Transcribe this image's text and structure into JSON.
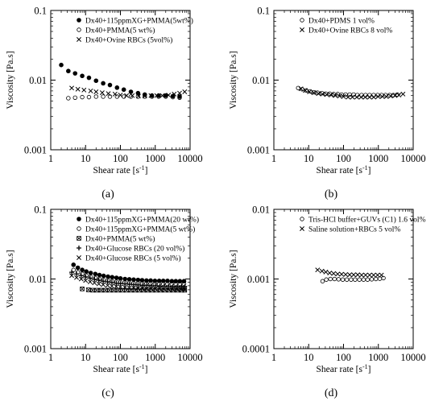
{
  "chart_data": [
    {
      "type": "scatter",
      "panel_label": "(a)",
      "xlabel": "Shear rate  [s",
      "xlabel_sup": "-1",
      "xlabel_end": "]",
      "ylabel": "Viscosity [Pa.s]",
      "xscale": "log",
      "yscale": "log",
      "xlim": [
        1,
        10000
      ],
      "ylim": [
        0.001,
        0.1
      ],
      "xticks": [
        1,
        10,
        100,
        1000,
        10000
      ],
      "xtick_labels": [
        "1",
        "10",
        "100",
        "1000",
        "10000"
      ],
      "yticks": [
        0.001,
        0.01,
        0.1
      ],
      "ytick_labels": [
        "0.001",
        "0.01",
        "0.1"
      ],
      "legend_position": "top-right",
      "series": [
        {
          "name": "Dx40+115ppmXG+PMMA(5wt%)",
          "marker": "filled-circle",
          "x": [
            2,
            3.2,
            5,
            8,
            12.5,
            20,
            32,
            50,
            80,
            125,
            200,
            320,
            500,
            800,
            1250,
            2000,
            3200,
            5000
          ],
          "y": [
            0.0165,
            0.0135,
            0.0125,
            0.0115,
            0.0108,
            0.0098,
            0.009,
            0.0085,
            0.0078,
            0.0073,
            0.0068,
            0.0065,
            0.0062,
            0.006,
            0.006,
            0.006,
            0.0059,
            0.0058
          ]
        },
        {
          "name": "Dx40+PMMA(5 wt%)",
          "marker": "open-circle",
          "x": [
            3.2,
            5,
            8,
            12.5,
            20,
            32,
            50,
            80,
            125,
            200,
            320,
            500,
            800,
            1250,
            2000,
            3200,
            5000
          ],
          "y": [
            0.0055,
            0.0056,
            0.0057,
            0.0057,
            0.0058,
            0.0058,
            0.0058,
            0.0058,
            0.0058,
            0.0058,
            0.0058,
            0.0058,
            0.0058,
            0.0058,
            0.0058,
            0.0057,
            0.0056
          ]
        },
        {
          "name": "Dx40+Ovine RBCs (5vol%)",
          "marker": "cross",
          "x": [
            4,
            6,
            9,
            14,
            20,
            30,
            45,
            70,
            100,
            150,
            220,
            330,
            500,
            750,
            1100,
            1600,
            2400,
            3500,
            5000,
            7000
          ],
          "y": [
            0.0077,
            0.0074,
            0.0072,
            0.007,
            0.0068,
            0.0066,
            0.0064,
            0.0063,
            0.0061,
            0.006,
            0.006,
            0.0059,
            0.0059,
            0.006,
            0.006,
            0.006,
            0.0061,
            0.0063,
            0.0065,
            0.0068
          ]
        }
      ]
    },
    {
      "type": "scatter",
      "panel_label": "(b)",
      "xlabel": "Shear rate  [s",
      "xlabel_sup": "-1",
      "xlabel_end": "]",
      "ylabel": "Viscosity [Pa.s]",
      "xscale": "log",
      "yscale": "log",
      "xlim": [
        1,
        10000
      ],
      "ylim": [
        0.001,
        0.1
      ],
      "xticks": [
        1,
        10,
        100,
        1000,
        10000
      ],
      "xtick_labels": [
        "1",
        "10",
        "100",
        "1000",
        "10000"
      ],
      "yticks": [
        0.001,
        0.01,
        0.1
      ],
      "ytick_labels": [
        "0.001",
        "0.01",
        "0.1"
      ],
      "legend_position": "top-right",
      "series": [
        {
          "name": "Dx40+PDMS 1 vol%",
          "marker": "open-circle",
          "x": [
            5,
            6.5,
            8.5,
            11,
            14,
            18,
            24,
            31,
            40,
            52,
            68,
            88,
            115,
            150,
            195,
            250,
            330,
            430,
            560,
            730,
            950,
            1230,
            1600,
            2100,
            2700,
            3500
          ],
          "y": [
            0.0077,
            0.0074,
            0.0071,
            0.0069,
            0.0067,
            0.0066,
            0.0065,
            0.0064,
            0.0064,
            0.0063,
            0.0063,
            0.0062,
            0.0062,
            0.0062,
            0.0062,
            0.0061,
            0.0061,
            0.0061,
            0.0061,
            0.0061,
            0.0061,
            0.0061,
            0.0061,
            0.0061,
            0.0061,
            0.0062
          ]
        },
        {
          "name": "Dx40+Ovine RBCs 8 vol%",
          "marker": "cross",
          "x": [
            6,
            8,
            10.5,
            14,
            19,
            25,
            33,
            44,
            58,
            77,
            100,
            135,
            180,
            240,
            320,
            420,
            560,
            740,
            980,
            1300,
            1700,
            2250,
            3000,
            3900,
            5100
          ],
          "y": [
            0.0075,
            0.0071,
            0.0068,
            0.0066,
            0.0064,
            0.0063,
            0.0062,
            0.0061,
            0.006,
            0.0059,
            0.0058,
            0.0057,
            0.0057,
            0.0057,
            0.0057,
            0.0057,
            0.0057,
            0.0057,
            0.0058,
            0.0058,
            0.0058,
            0.0059,
            0.006,
            0.0061,
            0.0063
          ]
        }
      ]
    },
    {
      "type": "scatter",
      "panel_label": "(c)",
      "xlabel": "Shear rate  [s",
      "xlabel_sup": "-1",
      "xlabel_end": "]",
      "ylabel": "Viscosity [Pa.s]",
      "xscale": "log",
      "yscale": "log",
      "xlim": [
        1,
        10000
      ],
      "ylim": [
        0.001,
        0.1
      ],
      "xticks": [
        1,
        10,
        100,
        1000,
        10000
      ],
      "xtick_labels": [
        "1",
        "10",
        "100",
        "1000",
        "10000"
      ],
      "yticks": [
        0.001,
        0.01,
        0.1
      ],
      "ytick_labels": [
        "0.001",
        "0.01",
        "0.1"
      ],
      "legend_position": "top-right",
      "series": [
        {
          "name": "Dx40+115ppmXG+PMMA(20 wt%)",
          "marker": "filled-circle",
          "x": [
            4.5,
            6,
            8,
            10.5,
            14,
            19,
            25,
            33,
            44,
            58,
            77,
            100,
            135,
            180,
            240,
            320,
            420,
            560,
            740,
            980,
            1300,
            1700,
            2250,
            3000,
            3900,
            5100,
            6700
          ],
          "y": [
            0.016,
            0.0145,
            0.0135,
            0.0128,
            0.0122,
            0.0118,
            0.0114,
            0.0111,
            0.0108,
            0.0106,
            0.0104,
            0.0102,
            0.01,
            0.0099,
            0.0098,
            0.0097,
            0.0096,
            0.0095,
            0.0095,
            0.0094,
            0.0094,
            0.0094,
            0.0094,
            0.0093,
            0.0093,
            0.0093,
            0.0093
          ]
        },
        {
          "name": "Dx40+115ppmXG+PMMA(5 wt%)",
          "marker": "open-circle",
          "x": [
            4.5,
            6,
            8,
            10.5,
            14,
            19,
            25,
            33,
            44,
            58,
            77,
            100,
            135,
            180,
            240,
            320,
            420,
            560,
            740,
            980,
            1300,
            1700,
            2250,
            3000,
            3900,
            5100,
            6700
          ],
          "y": [
            0.0135,
            0.0125,
            0.0118,
            0.0112,
            0.0107,
            0.0103,
            0.01,
            0.0097,
            0.0095,
            0.0093,
            0.0091,
            0.009,
            0.0089,
            0.0088,
            0.0087,
            0.0087,
            0.0086,
            0.0086,
            0.0086,
            0.0085,
            0.0085,
            0.0085,
            0.0085,
            0.0085,
            0.0085,
            0.0085,
            0.0085
          ]
        },
        {
          "name": "Dx40+PMMA(5 wt%)",
          "marker": "boxed-cross",
          "x": [
            8,
            12,
            16,
            21,
            28,
            37,
            49,
            65,
            86,
            115,
            150,
            200,
            265,
            350,
            465,
            615,
            815,
            1080,
            1430,
            1900,
            2500,
            3300,
            4400,
            5800,
            7000
          ],
          "y": [
            0.0072,
            0.007,
            0.0069,
            0.0069,
            0.0069,
            0.0069,
            0.0069,
            0.0069,
            0.0069,
            0.0069,
            0.0069,
            0.0069,
            0.0069,
            0.0069,
            0.0069,
            0.0069,
            0.0069,
            0.0069,
            0.0069,
            0.0069,
            0.0069,
            0.0069,
            0.0069,
            0.0069,
            0.0069
          ]
        },
        {
          "name": "Dx40+Glucose RBCs (20 vol%)",
          "marker": "plus",
          "x": [
            4,
            5.5,
            7.5,
            10,
            13.5,
            18,
            24,
            32,
            43,
            57,
            76,
            100,
            135,
            180,
            240,
            320,
            430,
            570,
            760,
            1010,
            1350,
            1800,
            2400,
            3200,
            4300,
            5700,
            7000
          ],
          "y": [
            0.0125,
            0.0118,
            0.0112,
            0.0107,
            0.0103,
            0.0099,
            0.0096,
            0.0093,
            0.0091,
            0.0089,
            0.0087,
            0.0086,
            0.0085,
            0.0084,
            0.0083,
            0.0082,
            0.0081,
            0.0081,
            0.008,
            0.008,
            0.0079,
            0.0079,
            0.0079,
            0.0078,
            0.0078,
            0.0078,
            0.0078
          ]
        },
        {
          "name": "Dx40+Glucose RBCs (5 vol%)",
          "marker": "cross",
          "x": [
            4,
            5.5,
            7.5,
            10,
            13.5,
            18,
            24,
            32,
            43,
            57,
            76,
            100,
            135,
            180,
            240,
            320,
            430,
            570,
            760,
            1010,
            1350,
            1800,
            2400,
            3200,
            4300,
            5700,
            7000
          ],
          "y": [
            0.0112,
            0.0105,
            0.01,
            0.0095,
            0.0091,
            0.0088,
            0.0085,
            0.0083,
            0.0081,
            0.0079,
            0.0078,
            0.0077,
            0.0076,
            0.0075,
            0.0075,
            0.0074,
            0.0074,
            0.0073,
            0.0073,
            0.0073,
            0.0073,
            0.0072,
            0.0072,
            0.0072,
            0.0072,
            0.0072,
            0.0072
          ]
        }
      ]
    },
    {
      "type": "scatter",
      "panel_label": "(d)",
      "xlabel": "Shear rate  [s",
      "xlabel_sup": "-1",
      "xlabel_end": "]",
      "ylabel": "Viscosity [Pa.s]",
      "xscale": "log",
      "yscale": "log",
      "xlim": [
        1,
        10000
      ],
      "ylim": [
        0.0001,
        0.01
      ],
      "xticks": [
        1,
        10,
        100,
        1000,
        10000
      ],
      "xtick_labels": [
        "1",
        "10",
        "100",
        "1000",
        "10000"
      ],
      "yticks": [
        0.0001,
        0.001,
        0.01
      ],
      "ytick_labels": [
        "0.0001",
        "0.001",
        "0.01"
      ],
      "legend_position": "top-right",
      "series": [
        {
          "name": "Tris-HCl buffer+GUVs (C1) 1.6 vol%",
          "marker": "open-circle",
          "x": [
            25,
            32,
            42,
            55,
            72,
            95,
            125,
            165,
            215,
            285,
            375,
            490,
            645,
            850,
            1100,
            1400
          ],
          "y": [
            0.00093,
            0.00098,
            0.001,
            0.001,
            0.00099,
            0.00098,
            0.00098,
            0.00098,
            0.00098,
            0.00098,
            0.00098,
            0.00098,
            0.00099,
            0.001,
            0.00101,
            0.00103
          ]
        },
        {
          "name": "Saline solution+RBCs 5 vol%",
          "marker": "cross",
          "x": [
            18,
            24,
            31,
            40,
            52,
            68,
            88,
            115,
            150,
            195,
            255,
            330,
            430,
            560,
            730,
            950,
            1230
          ],
          "y": [
            0.00135,
            0.0013,
            0.00126,
            0.00122,
            0.0012,
            0.00118,
            0.00117,
            0.00116,
            0.00115,
            0.00115,
            0.00115,
            0.00114,
            0.00114,
            0.00114,
            0.00114,
            0.00114,
            0.00114
          ]
        }
      ]
    }
  ]
}
